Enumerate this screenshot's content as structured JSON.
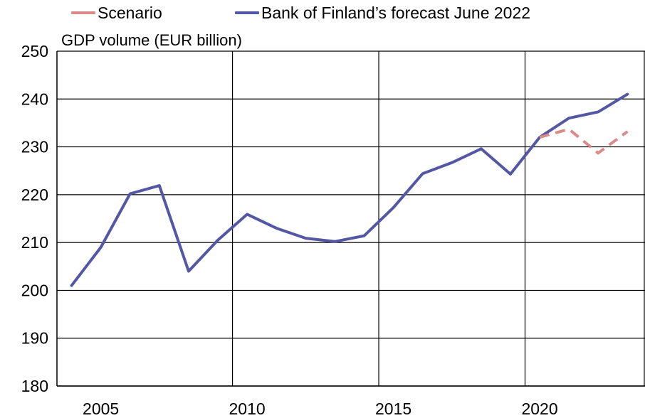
{
  "chart_data": {
    "type": "line",
    "ylabel": "GDP volume  (EUR billion)",
    "ylim": [
      180,
      250
    ],
    "y_ticks": [
      "180",
      "190",
      "200",
      "210",
      "220",
      "230",
      "240",
      "250"
    ],
    "x_ticks": [
      "2005",
      "2010",
      "2015",
      "2020"
    ],
    "grid": true,
    "legend_position": "top",
    "series": [
      {
        "name": "Bank of Finland’s  forecast June 2022",
        "color": "#5457a3",
        "dashed": false,
        "x": [
          2004,
          2005,
          2006,
          2007,
          2008,
          2009,
          2010,
          2011,
          2012,
          2013,
          2014,
          2015,
          2016,
          2017,
          2018,
          2019,
          2020,
          2021,
          2022,
          2023
        ],
        "values": [
          201,
          209,
          220.2,
          221.9,
          204,
          210.5,
          215.9,
          213,
          210.9,
          210.2,
          211.4,
          217.3,
          224.4,
          226.7,
          229.6,
          224.3,
          232,
          236,
          237.3,
          241
        ]
      },
      {
        "name": "Scenario",
        "color": "#d98a8a",
        "dashed": true,
        "x": [
          2020,
          2021,
          2022,
          2023
        ],
        "values": [
          232,
          233.7,
          228.7,
          233.2
        ]
      }
    ]
  }
}
